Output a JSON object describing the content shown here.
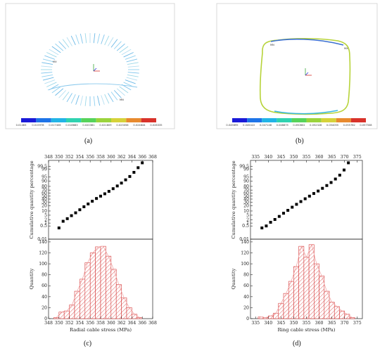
{
  "panels": {
    "a": {
      "caption": "(a)",
      "colorbar_labels": [
        "0.01463",
        "0.015978",
        "0.017406",
        "0.018683",
        "0.020381",
        "0.021809",
        "0.023056",
        "0.024844",
        "0.026335"
      ],
      "colorbar_colors": [
        "#1a1ad8",
        "#1e74e8",
        "#22b4e6",
        "#2fd2b0",
        "#56d35a",
        "#9bd33c",
        "#d6d23a",
        "#e88a2e",
        "#d8322a"
      ]
    },
    "b": {
      "caption": "(b)",
      "colorbar_labels": [
        "0.045695",
        "0.045422",
        "0.047148",
        "0.048875",
        "0.050602",
        "0.052328",
        "0.054055",
        "0.055782",
        "0.057508"
      ],
      "colorbar_colors": [
        "#1a1ad8",
        "#1e74e8",
        "#22b4e6",
        "#2fd2b0",
        "#56d35a",
        "#9bd33c",
        "#d6d23a",
        "#e88a2e",
        "#d8322a"
      ]
    },
    "c": {
      "caption": "(c)"
    },
    "d": {
      "caption": "(d)"
    }
  },
  "chart_data": [
    {
      "id": "c-probability",
      "type": "scatter",
      "ylabel": "Cumulative quantity percentage",
      "xlim": [
        348,
        368
      ],
      "xticks": [
        348,
        350,
        352,
        354,
        356,
        358,
        360,
        362,
        364,
        366,
        368
      ],
      "yscale": "probability",
      "yticks": [
        "0.01",
        "0.5",
        "1",
        "2",
        "5",
        "10",
        "20",
        "30",
        "40",
        "50",
        "60",
        "70",
        "80",
        "90",
        "95",
        "99",
        "99.5"
      ],
      "x": [
        350.0,
        350.8,
        351.6,
        352.4,
        353.2,
        354.0,
        354.8,
        355.6,
        356.4,
        357.2,
        358.0,
        358.8,
        359.6,
        360.4,
        361.2,
        362.0,
        362.8,
        363.6,
        364.4,
        365.2,
        366.0
      ],
      "y": [
        0.3,
        1.5,
        2.6,
        4.6,
        7.5,
        12,
        18,
        25,
        33,
        42,
        50,
        58,
        66,
        74,
        81,
        87,
        92,
        95.5,
        98,
        99.3,
        99.8
      ]
    },
    {
      "id": "c-histogram",
      "type": "bar",
      "xlabel": "Radial cable stress (MPa)",
      "ylabel": "Quantity",
      "xlim": [
        348,
        368
      ],
      "xticks": [
        348,
        350,
        352,
        354,
        356,
        358,
        360,
        362,
        364,
        366,
        368
      ],
      "ylim": [
        0,
        145
      ],
      "yticks": [
        0,
        20,
        40,
        60,
        80,
        100,
        120,
        140
      ],
      "bin_edges": [
        349.0,
        350.0,
        351.0,
        352.0,
        353.0,
        354.0,
        355.0,
        356.0,
        357.0,
        358.0,
        359.0,
        360.0,
        361.0,
        362.0,
        363.0,
        364.0,
        365.0,
        366.0
      ],
      "values": [
        2,
        12,
        14,
        25,
        50,
        72,
        102,
        120,
        131,
        132,
        114,
        90,
        62,
        38,
        20,
        8,
        2
      ],
      "bar_color": "#d63a3a"
    },
    {
      "id": "d-probability",
      "type": "scatter",
      "ylabel": "Cumulative quantity percentage",
      "xlim": [
        333,
        377
      ],
      "xticks": [
        335,
        340,
        345,
        350,
        355,
        360,
        365,
        370,
        375
      ],
      "yscale": "probability",
      "yticks": [
        "0.01",
        "0.5",
        "1",
        "2",
        "5",
        "10",
        "20",
        "30",
        "40",
        "50",
        "60",
        "70",
        "80",
        "90",
        "95",
        "99",
        "99.5"
      ],
      "x": [
        337.5,
        339.2,
        340.9,
        342.6,
        344.3,
        346.0,
        347.7,
        349.4,
        351.1,
        352.8,
        354.5,
        356.2,
        357.9,
        359.6,
        361.3,
        363.0,
        364.7,
        366.4,
        368.1,
        369.8,
        371.5
      ],
      "y": [
        0.3,
        0.5,
        1.2,
        2.2,
        4,
        7,
        11,
        17,
        24,
        32,
        41,
        50,
        59,
        67,
        75,
        82,
        88,
        93,
        96.5,
        98.8,
        99.8
      ]
    },
    {
      "id": "d-histogram",
      "type": "bar",
      "xlabel": "Ring cable stress (MPa)",
      "ylabel": "Quantity",
      "xlim": [
        333,
        377
      ],
      "xticks": [
        335,
        340,
        345,
        350,
        355,
        360,
        365,
        370,
        375
      ],
      "ylim": [
        0,
        145
      ],
      "yticks": [
        0,
        20,
        40,
        60,
        80,
        100,
        120,
        140
      ],
      "bin_edges": [
        336,
        338,
        340,
        342,
        344,
        346,
        348,
        350,
        352,
        354,
        356,
        358,
        360,
        362,
        364,
        366,
        368,
        370,
        372,
        374
      ],
      "values": [
        3,
        2,
        5,
        10,
        28,
        46,
        68,
        95,
        132,
        112,
        135,
        100,
        78,
        50,
        30,
        22,
        14,
        8,
        2
      ],
      "bar_color": "#d63a3a"
    }
  ]
}
